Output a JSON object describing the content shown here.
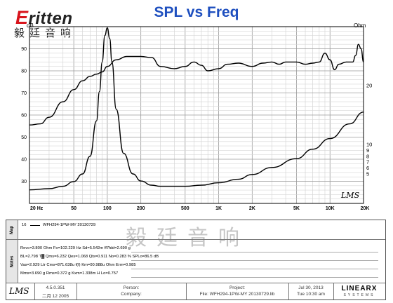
{
  "logo": {
    "brand_first": "E",
    "brand_rest": "ritten",
    "chinese": "毅廷音响"
  },
  "chart_data": {
    "type": "line",
    "title": "SPL vs Freq",
    "xlabel": "",
    "ylabel_left": "dB",
    "ylabel_right": "Ohm",
    "x_scale": "log",
    "xlim": [
      20,
      20000
    ],
    "ylim_left": [
      20,
      100
    ],
    "ylim_right": [
      0,
      30
    ],
    "x_ticks": [
      "20 Hz",
      "50",
      "100",
      "200",
      "500",
      "1K",
      "2K",
      "5K",
      "10K",
      "20K"
    ],
    "x_tick_values": [
      20,
      50,
      100,
      200,
      500,
      1000,
      2000,
      5000,
      10000,
      20000
    ],
    "y_ticks_left": [
      30,
      40,
      50,
      60,
      70,
      80,
      90
    ],
    "y_ticks_right": [
      5,
      10,
      20
    ],
    "y_ticks_right_minor": [
      6,
      7,
      8,
      9
    ],
    "grid": true,
    "series": [
      {
        "name": "",
        "axis": "left",
        "x": [
          20,
          25,
          30,
          40,
          50,
          60,
          70,
          80,
          90,
          100,
          120,
          150,
          200,
          250,
          300,
          400,
          500,
          600,
          700,
          800,
          1000,
          1200,
          1500,
          2000,
          2500,
          3000,
          3500,
          4000,
          5000,
          6000,
          7000,
          8000,
          9000,
          10000,
          11000,
          12000,
          14000,
          16000,
          17000,
          18000,
          19000,
          20000
        ],
        "y": [
          55.5,
          56,
          59,
          66,
          71.5,
          75.5,
          77.5,
          78.5,
          79.5,
          82,
          85,
          86.5,
          86.5,
          86,
          82,
          81,
          82,
          84,
          82.5,
          80,
          81,
          83,
          83.5,
          82,
          83.5,
          84,
          83,
          84,
          84,
          83,
          83.5,
          84,
          88,
          85,
          80.5,
          83,
          84,
          84,
          87,
          92,
          90,
          84
        ]
      },
      {
        "name": "",
        "axis": "right",
        "x": [
          20,
          30,
          40,
          50,
          60,
          70,
          80,
          85,
          90,
          95,
          100,
          105,
          110,
          120,
          140,
          170,
          200,
          250,
          300,
          400,
          500,
          700,
          1000,
          1500,
          2000,
          3000,
          5000,
          7000,
          10000,
          15000,
          20000
        ],
        "y": [
          2.3,
          2.5,
          2.9,
          3.7,
          5,
          8,
          14,
          19,
          24,
          28.5,
          29.8,
          28,
          24,
          16,
          8.5,
          5,
          3.8,
          3.1,
          2.9,
          2.9,
          2.9,
          3.1,
          3.5,
          4.1,
          4.9,
          6.1,
          7.6,
          9.2,
          11,
          13.5,
          15.5
        ]
      }
    ]
  },
  "chart_stamp": "LMS",
  "panel": {
    "map_label": "Map",
    "map_series_number": "16",
    "map_series_text": "WFH294-1PW-MY 20130729",
    "notes_label": "Notes",
    "notes": [
      "Revc=3.800 Ohm Fo=102.229 Hz Sd=5.542m ff7fdd=2.690 g",
      "BL=2.798 T▓  Qms=6.232 Qes=1.068 Qts=0.911 No=0.283 %  SPLo=86.5 dB",
      "Vas=2.929 Ltr Cms=871.638u f(f) Km=00.988u Ohm Erm=0.985",
      "Mms=3.690 g Rms=0.372 g Kxm=1.338m H Lo=0.757"
    ],
    "watermark": "毅廷音响",
    "footer": {
      "logo": "LMS",
      "version": "4.5.0.351",
      "version_date": "二月 12 2005",
      "person_label": "Person:",
      "company_label": "Company:",
      "project_label": "Project:",
      "file_label": "File:",
      "file_value": "WFH294-1PW-MY 20130729.lib",
      "date": "Jul 30, 2013",
      "time": "Tue 10:30 am",
      "brand": "LINEARX",
      "brand_sub": "SYSTEMS"
    }
  }
}
